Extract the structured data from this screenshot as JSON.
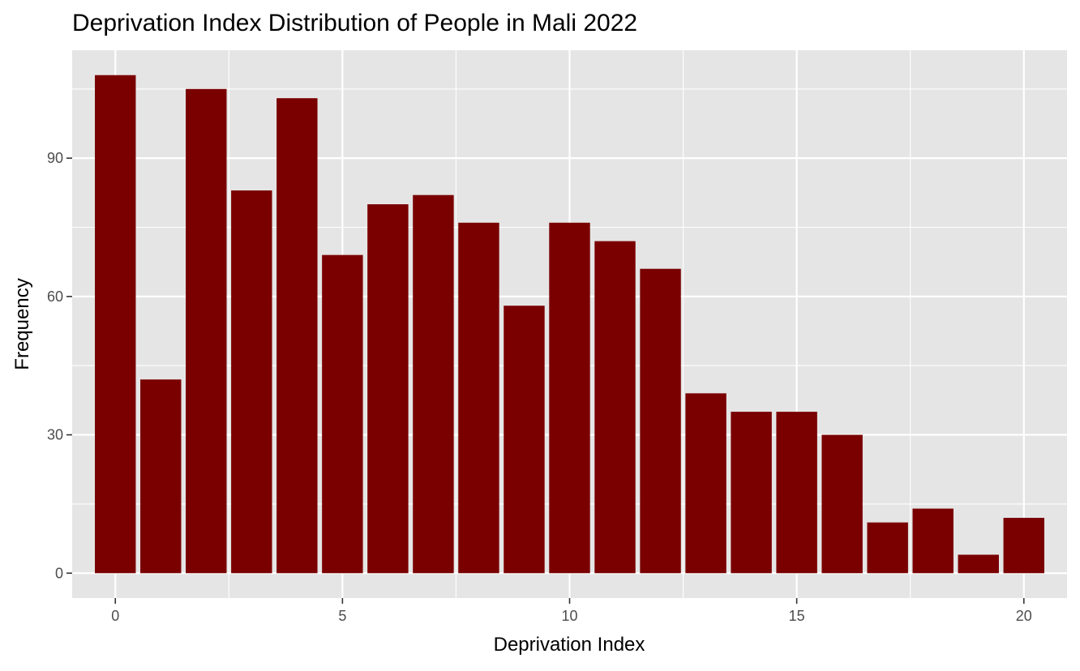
{
  "chart_data": {
    "type": "bar",
    "title": "Deprivation Index Distribution of People in Mali 2022",
    "xlabel": "Deprivation Index",
    "ylabel": "Frequency",
    "x": [
      0,
      1,
      2,
      3,
      4,
      5,
      6,
      7,
      8,
      9,
      10,
      11,
      12,
      13,
      14,
      15,
      16,
      17,
      18,
      19,
      20
    ],
    "values": [
      108,
      42,
      105,
      83,
      103,
      69,
      80,
      82,
      76,
      58,
      76,
      72,
      66,
      39,
      35,
      35,
      30,
      11,
      14,
      4,
      12
    ],
    "xlim": [
      -0.95,
      20.95
    ],
    "ylim": [
      -5.4,
      113.4
    ],
    "x_ticks": [
      0,
      5,
      10,
      15,
      20
    ],
    "y_ticks": [
      0,
      30,
      60,
      90
    ],
    "x_tick_labels": [
      "0",
      "5",
      "10",
      "15",
      "20"
    ],
    "y_tick_labels": [
      "0",
      "30",
      "60",
      "90"
    ],
    "bar_color": "#7a0000",
    "panel_color": "#e5e5e5",
    "grid": true,
    "legend": "none"
  }
}
